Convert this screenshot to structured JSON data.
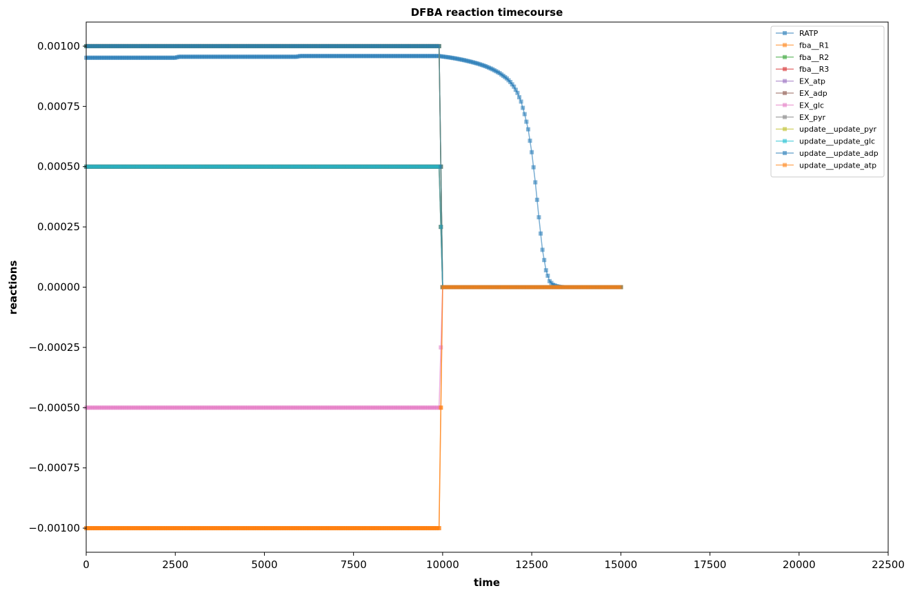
{
  "chart_data": {
    "type": "line",
    "title": "DFBA reaction timecourse",
    "xlabel": "time",
    "ylabel": "reactions",
    "xlim": [
      0,
      22500
    ],
    "ylim": [
      -0.0011,
      0.0011
    ],
    "xticks": [
      0,
      2500,
      5000,
      7500,
      10000,
      12500,
      15000,
      17500,
      20000,
      22500
    ],
    "xtick_labels": [
      "0",
      "2500",
      "5000",
      "7500",
      "10000",
      "12500",
      "15000",
      "17500",
      "20000",
      "22500"
    ],
    "yticks": [
      0.001,
      0.00075,
      0.0005,
      0.00025,
      0,
      -0.00025,
      -0.0005,
      -0.00075,
      -0.001
    ],
    "ytick_labels": [
      "0.00100",
      "0.00075",
      "0.00050",
      "0.00025",
      "0.00000",
      "−0.00025",
      "−0.00050",
      "−0.00075",
      "−0.00100"
    ],
    "grid": false,
    "legend_position": "top-right",
    "marker": "square",
    "series": [
      {
        "name": "RATP",
        "color": "#1f77b4",
        "x": [
          0,
          2500,
          2600,
          5900,
          6000,
          9900,
          10000,
          10200,
          10400,
          10600,
          10800,
          11000,
          11200,
          11400,
          11600,
          11800,
          11900,
          12000,
          12100,
          12200,
          12300,
          12400,
          12500,
          12600,
          12700,
          12800,
          12900,
          13000,
          13100,
          13200,
          13300,
          13400,
          13500,
          15000
        ],
        "y": [
          0.000952,
          0.000952,
          0.000956,
          0.000956,
          0.000959,
          0.000959,
          0.000957,
          0.000953,
          0.000948,
          0.000942,
          0.000935,
          0.000927,
          0.000917,
          0.000904,
          0.000888,
          0.000866,
          0.000851,
          0.000832,
          0.000806,
          0.00077,
          0.000718,
          0.000655,
          0.00056,
          0.000435,
          0.00029,
          0.000155,
          7e-05,
          2.5e-05,
          1e-05,
          4e-06,
          1e-06,
          0.0,
          0.0,
          0.0
        ]
      },
      {
        "name": "fba__R1",
        "color": "#ff7f0e",
        "x": [
          0,
          9900,
          10000,
          15000
        ],
        "y": [
          -0.001,
          -0.001,
          0.0,
          0.0
        ]
      },
      {
        "name": "fba__R2",
        "color": "#2ca02c",
        "x": [
          0,
          9900,
          10000,
          15000
        ],
        "y": [
          0.0005,
          0.0005,
          0.0,
          0.0
        ]
      },
      {
        "name": "fba__R3",
        "color": "#d62728",
        "x": [
          0,
          9900,
          10000,
          15000
        ],
        "y": [
          0.0005,
          0.0005,
          0.0,
          0.0
        ]
      },
      {
        "name": "EX_atp",
        "color": "#9467bd",
        "x": [
          0,
          9900,
          10000,
          15000
        ],
        "y": [
          0.001,
          0.001,
          0.0,
          0.0
        ]
      },
      {
        "name": "EX_adp",
        "color": "#8c564b",
        "x": [
          0,
          9900,
          10000,
          15000
        ],
        "y": [
          0.001,
          0.001,
          0.0,
          0.0
        ]
      },
      {
        "name": "EX_glc",
        "color": "#e377c2",
        "x": [
          0,
          9900,
          10000,
          15000
        ],
        "y": [
          -0.0005,
          -0.0005,
          0.0,
          0.0
        ]
      },
      {
        "name": "EX_pyr",
        "color": "#7f7f7f",
        "x": [
          0,
          9900,
          10000,
          15000
        ],
        "y": [
          0.001,
          0.001,
          0.0,
          0.0
        ]
      },
      {
        "name": "update__update_pyr",
        "color": "#bcbd22",
        "x": [
          0,
          9900,
          10000,
          15000
        ],
        "y": [
          0.001,
          0.001,
          0.0,
          0.0
        ]
      },
      {
        "name": "update__update_glc",
        "color": "#17becf",
        "x": [
          0,
          9900,
          10000,
          15000
        ],
        "y": [
          0.0005,
          0.0005,
          0.0,
          0.0
        ]
      },
      {
        "name": "update__update_adp",
        "color": "#1f77b4",
        "x": [
          0,
          9900,
          10000,
          15000
        ],
        "y": [
          0.001,
          0.001,
          0.0,
          0.0
        ]
      },
      {
        "name": "update__update_atp",
        "color": "#ff7f0e",
        "x": [
          0,
          9900,
          10000,
          15000
        ],
        "y": [
          -0.001,
          -0.001,
          0.0,
          0.0
        ]
      }
    ]
  }
}
